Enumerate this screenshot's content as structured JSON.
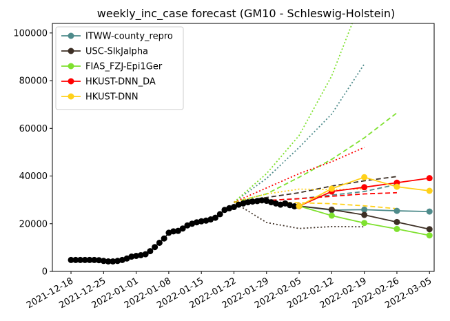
{
  "chart_data": {
    "type": "line",
    "title": "weekly_inc_case forecast (GM10 - Schleswig-Holstein)",
    "xlabel": "",
    "ylabel": "",
    "grid": false,
    "legend_position": "top-left",
    "xlim": [
      "2021-12-14",
      "2022-03-06"
    ],
    "ylim": [
      0,
      104000
    ],
    "x_ticks": [
      "2021-12-18",
      "2021-12-25",
      "2022-01-01",
      "2022-01-08",
      "2022-01-15",
      "2022-01-22",
      "2022-01-29",
      "2022-02-05",
      "2022-02-12",
      "2022-02-19",
      "2022-02-26",
      "2022-03-05"
    ],
    "y_ticks": [
      0,
      20000,
      40000,
      60000,
      80000,
      100000
    ],
    "y_tick_labels": [
      "0",
      "20000",
      "40000",
      "60000",
      "80000",
      "100000"
    ],
    "legend": [
      {
        "name": "ITWW-county_repro",
        "color": "#4e8b8b"
      },
      {
        "name": "USC-SIkJalpha",
        "color": "#3d2f25"
      },
      {
        "name": "FIAS_FZJ-Epi1Ger",
        "color": "#7fe12f"
      },
      {
        "name": "HKUST-DNN_DA",
        "color": "#ff0000"
      },
      {
        "name": "HKUST-DNN",
        "color": "#ffd11a"
      }
    ],
    "truth": {
      "color": "#000000",
      "x": [
        "2021-12-18",
        "2021-12-19",
        "2021-12-20",
        "2021-12-21",
        "2021-12-22",
        "2021-12-23",
        "2021-12-24",
        "2021-12-25",
        "2021-12-26",
        "2021-12-27",
        "2021-12-28",
        "2021-12-29",
        "2021-12-30",
        "2021-12-31",
        "2022-01-01",
        "2022-01-02",
        "2022-01-03",
        "2022-01-04",
        "2022-01-05",
        "2022-01-06",
        "2022-01-07",
        "2022-01-08",
        "2022-01-09",
        "2022-01-10",
        "2022-01-11",
        "2022-01-12",
        "2022-01-13",
        "2022-01-14",
        "2022-01-15",
        "2022-01-16",
        "2022-01-17",
        "2022-01-18",
        "2022-01-19",
        "2022-01-20",
        "2022-01-21",
        "2022-01-22",
        "2022-01-23",
        "2022-01-24",
        "2022-01-25",
        "2022-01-26",
        "2022-01-27",
        "2022-01-28",
        "2022-01-29",
        "2022-01-30",
        "2022-01-31",
        "2022-02-01",
        "2022-02-02",
        "2022-02-03",
        "2022-02-04",
        "2022-02-05"
      ],
      "y": [
        4800,
        4800,
        4800,
        4800,
        4800,
        4800,
        4700,
        4400,
        4200,
        4200,
        4400,
        4800,
        5400,
        6200,
        6500,
        6800,
        7200,
        8500,
        10200,
        12000,
        13800,
        16200,
        16800,
        17000,
        18000,
        19300,
        20000,
        20600,
        21000,
        21300,
        21800,
        22500,
        24000,
        25800,
        26500,
        27000,
        28000,
        28500,
        29000,
        29300,
        29500,
        29800,
        29600,
        29000,
        28500,
        28000,
        28500,
        27800,
        27300,
        27400
      ]
    },
    "series": [
      {
        "name": "ITWW-county_repro",
        "color": "#4e8b8b",
        "style": "solid",
        "markers": true,
        "x": [
          "2022-02-05",
          "2022-02-12",
          "2022-02-19",
          "2022-02-26",
          "2022-03-05"
        ],
        "y": [
          27400,
          25700,
          25900,
          25400,
          25100
        ]
      },
      {
        "name": "ITWW-county_repro",
        "color": "#4e8b8b",
        "style": "dashed",
        "markers": false,
        "x": [
          "2022-01-22",
          "2022-02-05",
          "2022-02-19",
          "2022-02-26"
        ],
        "y": [
          29000,
          30500,
          33500,
          36500
        ]
      },
      {
        "name": "ITWW-county_repro",
        "color": "#4e8b8b",
        "style": "dotted",
        "markers": false,
        "x": [
          "2022-01-22",
          "2022-01-29",
          "2022-02-05",
          "2022-02-12",
          "2022-02-19"
        ],
        "y": [
          29000,
          39000,
          52000,
          66000,
          87000
        ]
      },
      {
        "name": "USC-SIkJalpha",
        "color": "#3d2f25",
        "style": "solid",
        "markers": true,
        "x": [
          "2022-02-05",
          "2022-02-12",
          "2022-02-19",
          "2022-02-26",
          "2022-03-05"
        ],
        "y": [
          27400,
          25900,
          23700,
          20700,
          17700
        ]
      },
      {
        "name": "USC-SIkJalpha",
        "color": "#3d2f25",
        "style": "dashed",
        "markers": false,
        "x": [
          "2022-01-22",
          "2022-02-05",
          "2022-02-12",
          "2022-02-19",
          "2022-02-26"
        ],
        "y": [
          29000,
          33000,
          35800,
          38000,
          39800
        ]
      },
      {
        "name": "USC-SIkJalpha",
        "color": "#3d2f25",
        "style": "dotted",
        "markers": false,
        "x": [
          "2022-01-22",
          "2022-01-29",
          "2022-02-05",
          "2022-02-12",
          "2022-02-19"
        ],
        "y": [
          29000,
          20500,
          18000,
          18800,
          18700
        ]
      },
      {
        "name": "FIAS_FZJ-Epi1Ger",
        "color": "#7fe12f",
        "style": "solid",
        "markers": true,
        "x": [
          "2022-02-05",
          "2022-02-12",
          "2022-02-19",
          "2022-02-26",
          "2022-03-05"
        ],
        "y": [
          27400,
          23400,
          20300,
          17800,
          15100
        ]
      },
      {
        "name": "FIAS_FZJ-Epi1Ger",
        "color": "#7fe12f",
        "style": "dashed",
        "markers": false,
        "x": [
          "2022-01-22",
          "2022-01-29",
          "2022-02-05",
          "2022-02-12",
          "2022-02-19",
          "2022-02-26"
        ],
        "y": [
          29000,
          32500,
          39500,
          47000,
          56000,
          66500
        ]
      },
      {
        "name": "FIAS_FZJ-Epi1Ger",
        "color": "#7fe12f",
        "style": "dotted",
        "markers": false,
        "x": [
          "2022-01-22",
          "2022-01-29",
          "2022-02-05",
          "2022-02-12",
          "2022-02-19"
        ],
        "y": [
          29000,
          41000,
          57000,
          82000,
          117000
        ]
      },
      {
        "name": "HKUST-DNN_DA",
        "color": "#ff0000",
        "style": "solid",
        "markers": true,
        "x": [
          "2022-02-05",
          "2022-02-12",
          "2022-02-19",
          "2022-02-26",
          "2022-03-05"
        ],
        "y": [
          27400,
          33500,
          35300,
          37200,
          39100
        ]
      },
      {
        "name": "HKUST-DNN_DA",
        "color": "#ff0000",
        "style": "dashed",
        "markers": false,
        "x": [
          "2022-01-22",
          "2022-02-05",
          "2022-02-12",
          "2022-02-19",
          "2022-02-26"
        ],
        "y": [
          29000,
          30500,
          31500,
          32500,
          33000
        ]
      },
      {
        "name": "HKUST-DNN_DA",
        "color": "#ff0000",
        "style": "dotted",
        "markers": false,
        "x": [
          "2022-01-22",
          "2022-01-29",
          "2022-02-05",
          "2022-02-12",
          "2022-02-19"
        ],
        "y": [
          29000,
          35000,
          41000,
          46000,
          52000
        ]
      },
      {
        "name": "HKUST-DNN",
        "color": "#ffd11a",
        "style": "solid",
        "markers": true,
        "x": [
          "2022-02-05",
          "2022-02-12",
          "2022-02-19",
          "2022-02-26",
          "2022-03-05"
        ],
        "y": [
          27400,
          34700,
          39500,
          35500,
          33800
        ]
      },
      {
        "name": "HKUST-DNN",
        "color": "#ffd11a",
        "style": "dashed",
        "markers": false,
        "x": [
          "2022-01-22",
          "2022-02-05",
          "2022-02-12",
          "2022-02-19",
          "2022-02-26"
        ],
        "y": [
          29000,
          28800,
          28400,
          27500,
          26300
        ]
      },
      {
        "name": "HKUST-DNN",
        "color": "#ffd11a",
        "style": "dotted",
        "markers": false,
        "x": [
          "2022-01-22",
          "2022-01-29",
          "2022-02-05",
          "2022-02-12",
          "2022-02-19"
        ],
        "y": [
          29000,
          32500,
          34500,
          34300,
          34600
        ]
      }
    ]
  }
}
